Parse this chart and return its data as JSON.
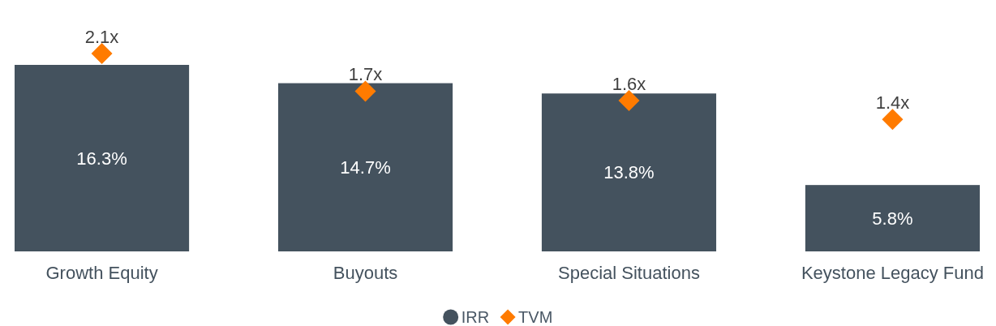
{
  "chart_data": {
    "type": "bar",
    "categories": [
      "Growth Equity",
      "Buyouts",
      "Special Situations",
      "Keystone Legacy Fund"
    ],
    "series": [
      {
        "name": "IRR",
        "color": "#44525e",
        "values": [
          16.3,
          14.7,
          13.8,
          5.8
        ],
        "value_labels": [
          "16.3%",
          "14.7%",
          "13.8%",
          "5.8%"
        ]
      },
      {
        "name": "TVM",
        "type": "scatter",
        "axis": "y2",
        "marker": "diamond",
        "color": "#ff7b00",
        "values": [
          2.1,
          1.7,
          1.6,
          1.4
        ],
        "value_labels": [
          "2.1x",
          "1.7x",
          "1.6x",
          "1.4x"
        ]
      }
    ],
    "tick_labels": "x",
    "legend": "bottom"
  }
}
